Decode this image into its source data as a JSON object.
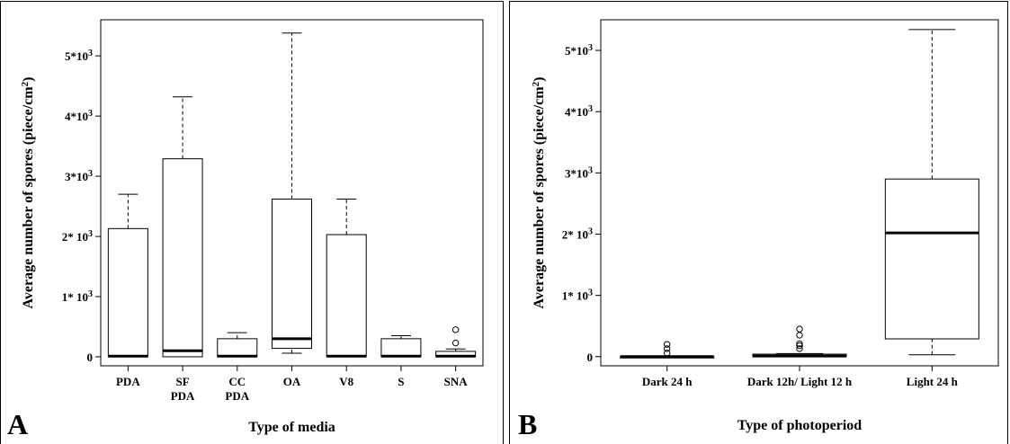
{
  "chart_data": [
    {
      "panel_label": "A",
      "type": "boxplot",
      "xlabel": "Type of media",
      "ylabel": "Average number of spores (piece/cm²)",
      "ylim": [
        -150,
        5600
      ],
      "yticks": [
        {
          "value": 0,
          "label": "0"
        },
        {
          "value": 1000,
          "label": "1* 10³"
        },
        {
          "value": 2000,
          "label": "2* 10³"
        },
        {
          "value": 3000,
          "label": "3*10³"
        },
        {
          "value": 4000,
          "label": "4*10³"
        },
        {
          "value": 5000,
          "label": "5*10³"
        }
      ],
      "categories": [
        {
          "label": [
            "PDA"
          ],
          "min": 0,
          "q1": 0,
          "median": 10,
          "q3": 2130,
          "max": 2700,
          "outliers": []
        },
        {
          "label": [
            "SF",
            "PDA"
          ],
          "min": 0,
          "q1": 0,
          "median": 100,
          "q3": 3290,
          "max": 4320,
          "outliers": []
        },
        {
          "label": [
            "CC",
            "PDA"
          ],
          "min": 0,
          "q1": 0,
          "median": 10,
          "q3": 300,
          "max": 400,
          "outliers": []
        },
        {
          "label": [
            "OA"
          ],
          "min": 60,
          "q1": 140,
          "median": 300,
          "q3": 2620,
          "max": 5380,
          "outliers": []
        },
        {
          "label": [
            "V8"
          ],
          "min": 0,
          "q1": 0,
          "median": 10,
          "q3": 2030,
          "max": 2620,
          "outliers": []
        },
        {
          "label": [
            "S"
          ],
          "min": 0,
          "q1": 0,
          "median": 10,
          "q3": 300,
          "max": 350,
          "outliers": []
        },
        {
          "label": [
            "SNA"
          ],
          "min": 0,
          "q1": 0,
          "median": 10,
          "q3": 90,
          "max": 130,
          "outliers": [
            230,
            450
          ]
        }
      ]
    },
    {
      "panel_label": "B",
      "type": "boxplot",
      "xlabel": "Type of photoperiod",
      "ylabel": "Average number of spores (piece/cm²)",
      "ylim": [
        -150,
        5500
      ],
      "yticks": [
        {
          "value": 0,
          "label": "0"
        },
        {
          "value": 1000,
          "label": "1* 10³"
        },
        {
          "value": 2000,
          "label": "2* 10³"
        },
        {
          "value": 3000,
          "label": "3*10³"
        },
        {
          "value": 4000,
          "label": "4*10³"
        },
        {
          "value": 5000,
          "label": "5*10³"
        }
      ],
      "categories": [
        {
          "label": [
            "Dark 24 h"
          ],
          "min": 0,
          "q1": 0,
          "median": 0,
          "q3": 0,
          "max": 0,
          "outliers": [
            60,
            130,
            200
          ]
        },
        {
          "label": [
            "Dark 12h/ Light 12 h"
          ],
          "min": 0,
          "q1": 0,
          "median": 10,
          "q3": 40,
          "max": 50,
          "outliers": [
            130,
            180,
            210,
            350,
            450
          ]
        },
        {
          "label": [
            "Light 24 h"
          ],
          "min": 30,
          "q1": 290,
          "median": 2020,
          "q3": 2900,
          "max": 5340,
          "outliers": []
        }
      ]
    }
  ]
}
